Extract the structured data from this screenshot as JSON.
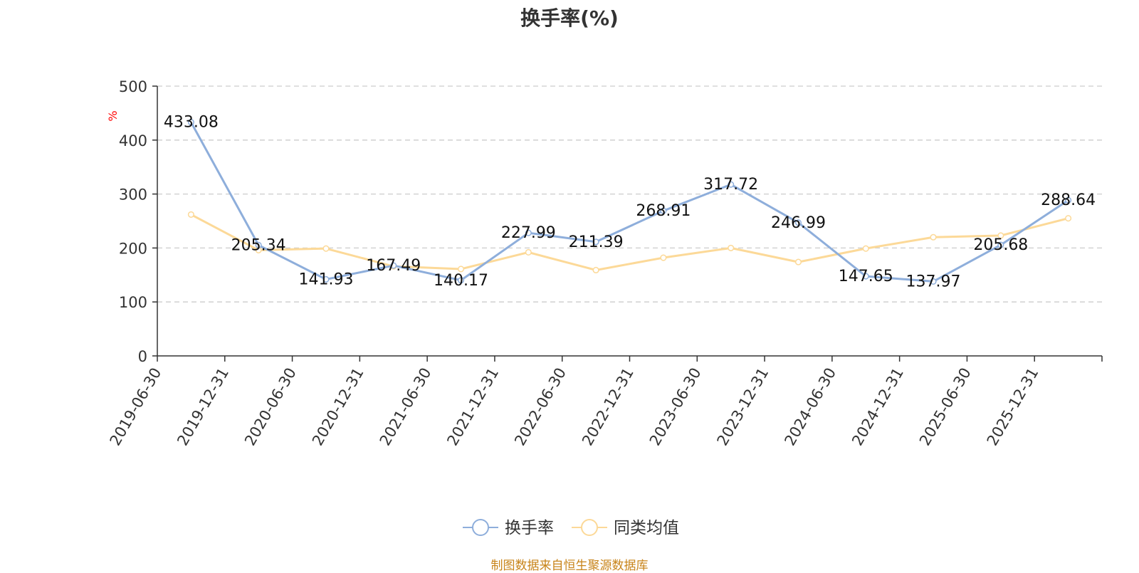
{
  "title": "换手率(%)",
  "source": "制图数据来自恒生聚源数据库",
  "chart_data": {
    "type": "line",
    "title": "换手率(%)",
    "ylabel": "%",
    "ylim": [
      0,
      500
    ],
    "yticks": [
      0,
      100,
      200,
      300,
      400,
      500
    ],
    "grid": true,
    "legend_position": "bottom-center",
    "categories": [
      "2019-06-30",
      "2019-12-31",
      "2020-06-30",
      "2020-12-31",
      "2021-06-30",
      "2021-12-31",
      "2022-06-30",
      "2022-12-31",
      "2023-06-30",
      "2023-12-31",
      "2024-06-30",
      "2024-12-31",
      "2025-06-30",
      "2025-12-31"
    ],
    "series": [
      {
        "name": "换手率",
        "color": "#8eaedb",
        "show_labels": true,
        "labels": [
          "433.08",
          "205.34",
          "141.93",
          "167.49",
          "140.17",
          "227.99",
          "211.39",
          "268.91",
          "317.72",
          "246.99",
          "147.65",
          "137.97",
          "205.68",
          "288.64"
        ],
        "values": [
          433.08,
          205.34,
          141.93,
          167.49,
          140.17,
          227.99,
          211.39,
          268.91,
          317.72,
          246.99,
          147.65,
          137.97,
          205.68,
          288.64
        ]
      },
      {
        "name": "同类均值",
        "color": "#fcd998",
        "show_labels": false,
        "values": [
          262,
          196,
          199,
          166,
          161,
          192,
          159,
          182,
          200,
          174,
          199,
          220,
          223,
          255
        ]
      }
    ]
  }
}
